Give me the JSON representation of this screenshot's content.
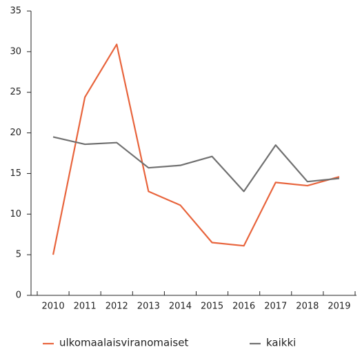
{
  "chart_data": {
    "type": "line",
    "categories": [
      "2010",
      "2011",
      "2012",
      "2013",
      "2014",
      "2015",
      "2016",
      "2017",
      "2018",
      "2019"
    ],
    "series": [
      {
        "name": "ulkomaalaisviranomaiset",
        "color": "#e8643c",
        "values": [
          5.0,
          24.4,
          30.9,
          12.8,
          11.1,
          6.5,
          6.1,
          13.9,
          13.5,
          14.6
        ]
      },
      {
        "name": "kaikki",
        "color": "#707070",
        "values": [
          19.5,
          18.6,
          18.8,
          15.7,
          16.0,
          17.1,
          12.8,
          18.5,
          14.0,
          14.4
        ]
      }
    ],
    "ylim": [
      0,
      35
    ],
    "yticks": [
      0,
      5,
      10,
      15,
      20,
      25,
      30,
      35
    ],
    "legend": "bottom"
  }
}
